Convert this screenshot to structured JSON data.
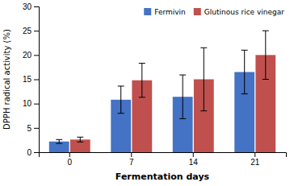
{
  "chart_data": {
    "type": "bar",
    "categories": [
      0,
      7,
      14,
      21
    ],
    "series": [
      {
        "name": "Fermivin",
        "color": "#4472C4",
        "values": [
          2.2,
          10.8,
          11.4,
          16.5
        ],
        "errors": [
          0.4,
          2.8,
          4.5,
          4.5
        ]
      },
      {
        "name": "Glutinous rice vinegar",
        "color": "#C0504D",
        "values": [
          2.6,
          14.8,
          15.0,
          20.0
        ],
        "errors": [
          0.5,
          3.5,
          6.5,
          5.0
        ]
      }
    ],
    "xlabel": "Fermentation days",
    "ylabel": "DPPH radical activity (%)",
    "ylim": [
      0,
      30
    ],
    "yticks": [
      0,
      5,
      10,
      15,
      20,
      25,
      30
    ],
    "legend": "upper right",
    "grid": false
  }
}
